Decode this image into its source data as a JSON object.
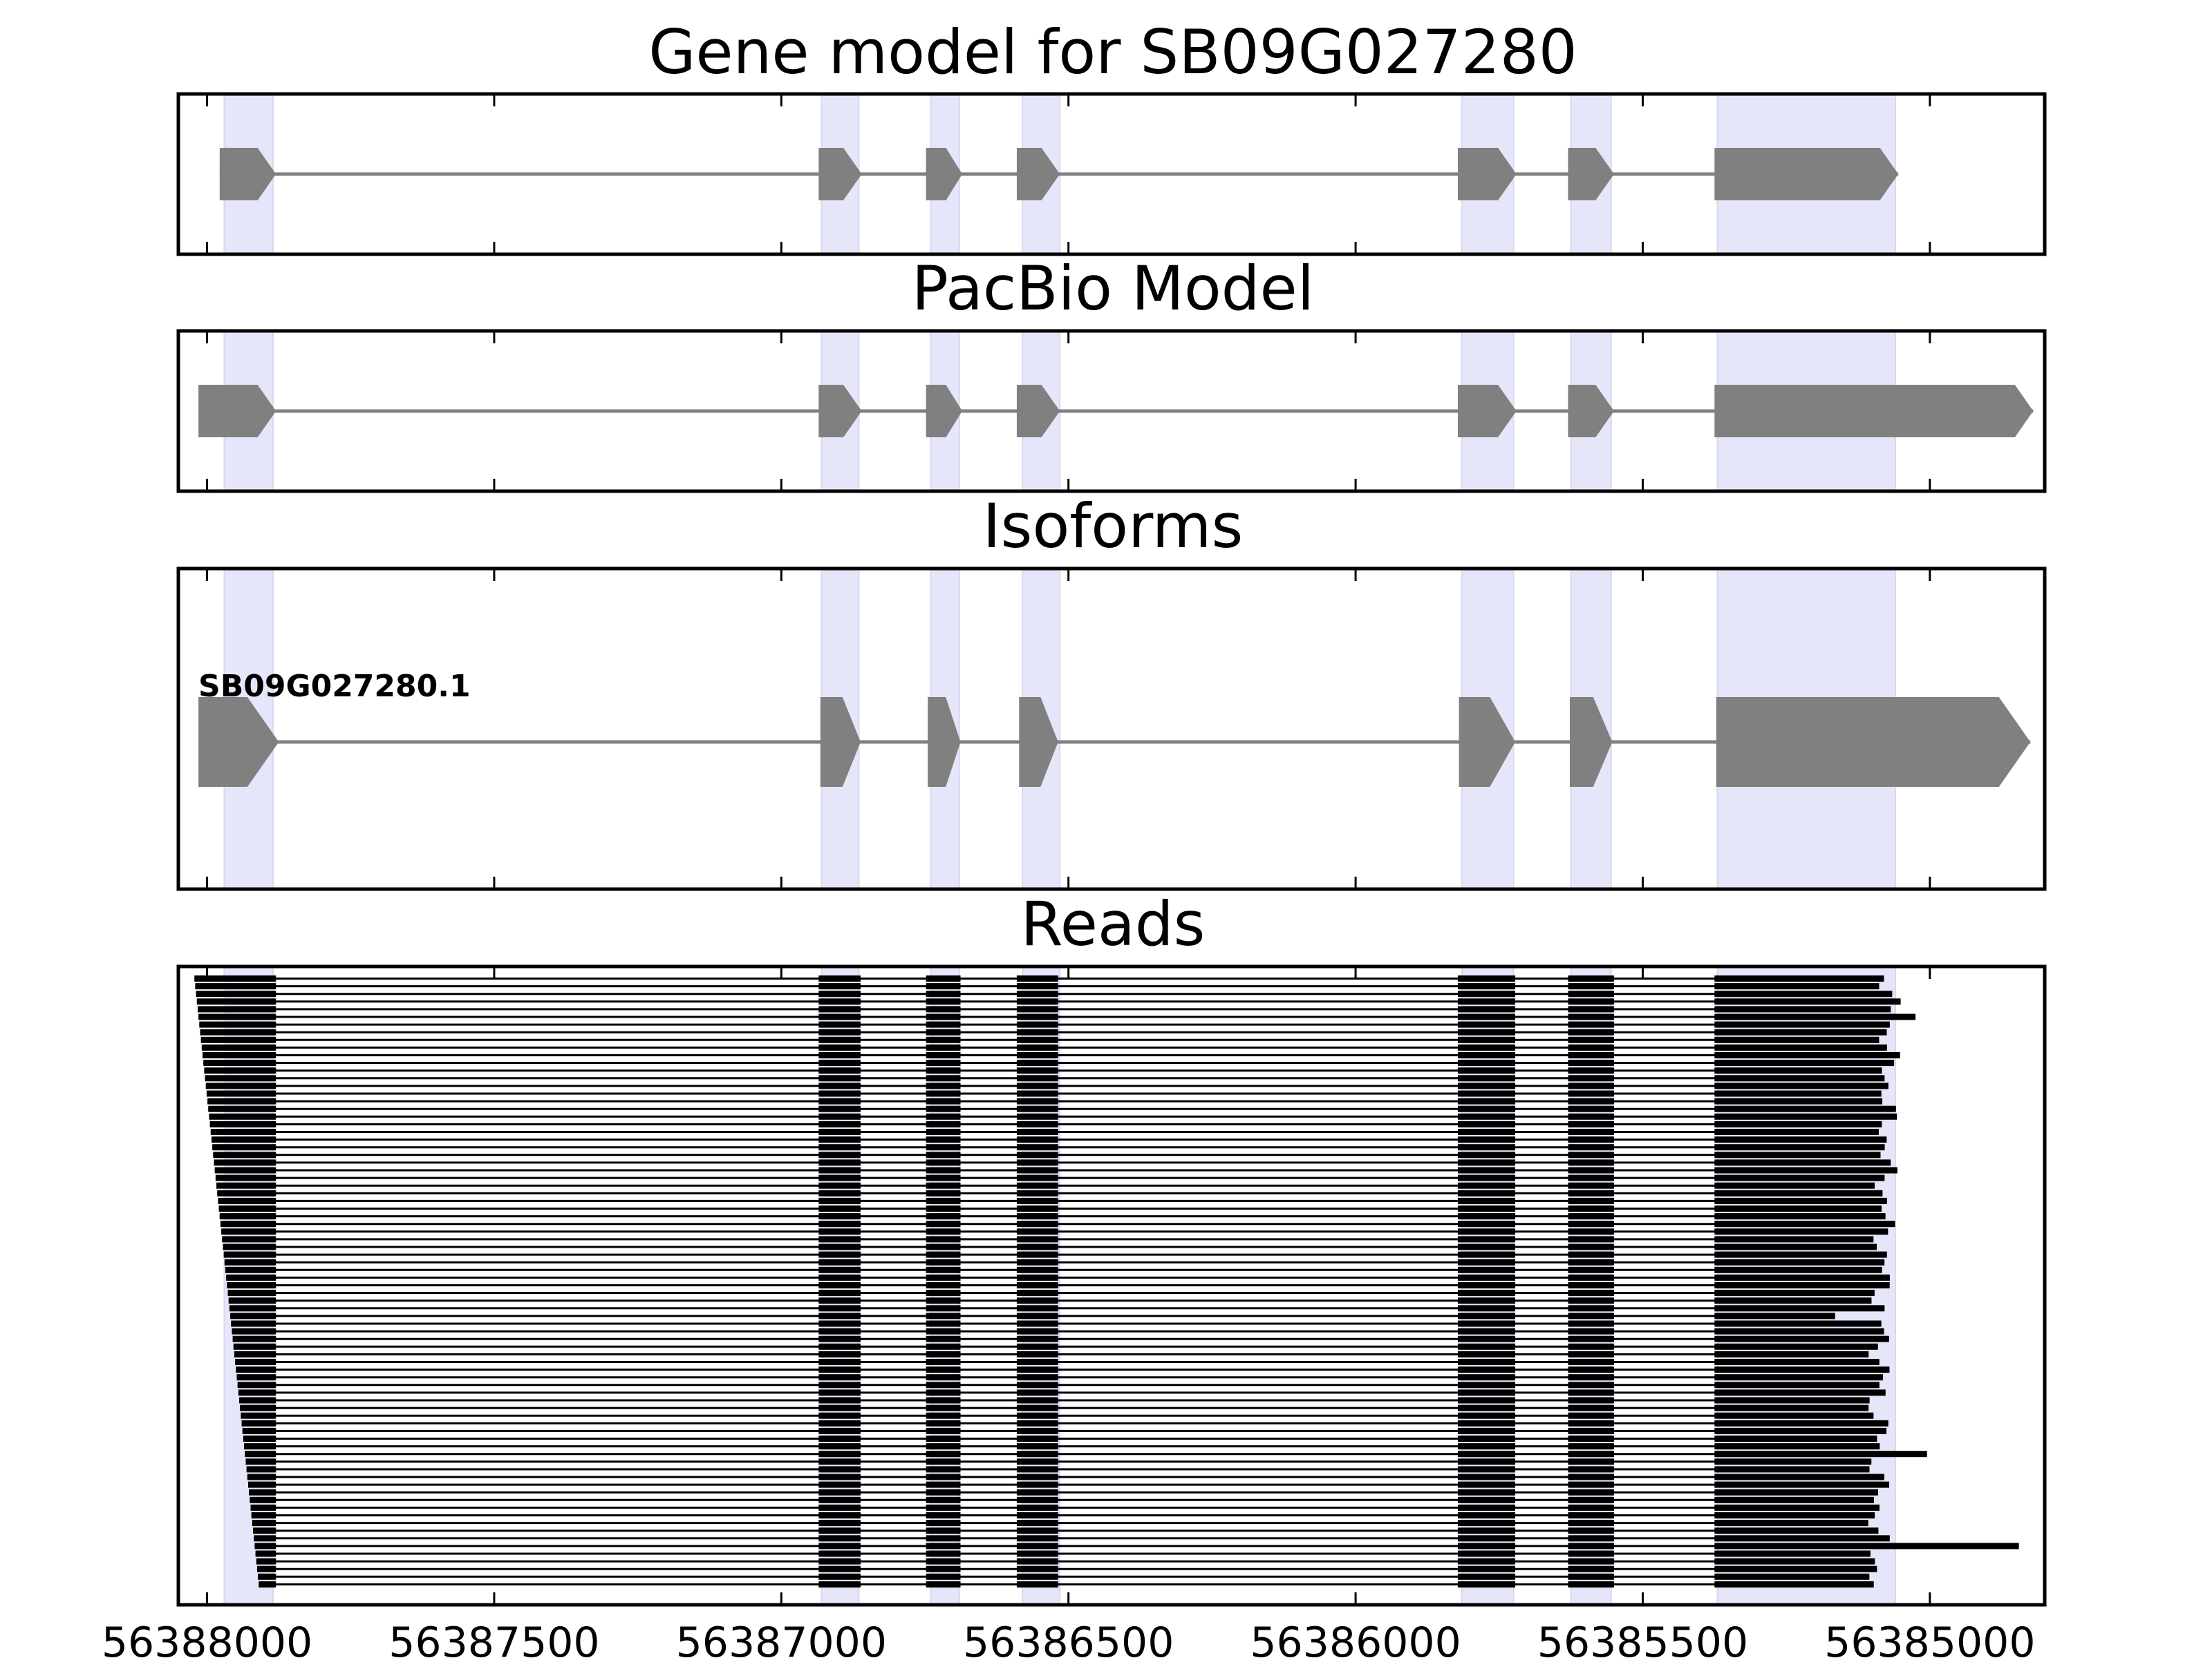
{
  "chart_data": {
    "type": "gene-track",
    "x_axis": {
      "range": [
        56388050,
        56384800
      ],
      "reversed": true,
      "ticks": [
        56388000,
        56387500,
        56387000,
        56386500,
        56386000,
        56385500,
        56385000
      ],
      "tick_labels": [
        "56388000",
        "56387500",
        "56387000",
        "56386500",
        "56386000",
        "56385500",
        "56385000"
      ]
    },
    "colors": {
      "feature": "#808080",
      "highlight": "#e6e6fa",
      "read": "#000000",
      "frame": "#000000"
    },
    "highlight_regions": [
      [
        56387970,
        56387885
      ],
      [
        56386930,
        56386865
      ],
      [
        56386740,
        56386690
      ],
      [
        56386580,
        56386515
      ],
      [
        56385815,
        56385725
      ],
      [
        56385625,
        56385555
      ],
      [
        56385370,
        56385060
      ]
    ],
    "panels": [
      {
        "title": "Gene model for SB09G027280",
        "exons": [
          [
            56387978,
            56387880
          ],
          [
            56386935,
            56386860
          ],
          [
            56386748,
            56386685
          ],
          [
            56386590,
            56386515
          ],
          [
            56385822,
            56385720
          ],
          [
            56385630,
            56385550
          ],
          [
            56385375,
            56385055
          ]
        ]
      },
      {
        "title": "PacBio Model",
        "exons": [
          [
            56388015,
            56387880
          ],
          [
            56386935,
            56386860
          ],
          [
            56386748,
            56386685
          ],
          [
            56386590,
            56386515
          ],
          [
            56385822,
            56385720
          ],
          [
            56385630,
            56385550
          ],
          [
            56385375,
            56384820
          ]
        ]
      },
      {
        "title": "Isoforms",
        "isoforms": [
          {
            "label": "SB09G027280.1",
            "exons": [
              [
                56388015,
                56387875
              ],
              [
                56386932,
                56386862
              ],
              [
                56386745,
                56386688
              ],
              [
                56386586,
                56386518
              ],
              [
                56385820,
                56385722
              ],
              [
                56385627,
                56385553
              ],
              [
                56385372,
                56384825
              ]
            ]
          }
        ]
      },
      {
        "title": "Reads",
        "read_count": 80,
        "read_start_range": [
          56388022,
          56387910
        ],
        "read_end_base": 56385050,
        "inner_exons": [
          [
            56386935,
            56386862
          ],
          [
            56386748,
            56386688
          ],
          [
            56386590,
            56386518
          ],
          [
            56385822,
            56385722
          ],
          [
            56385630,
            56385550
          ]
        ],
        "first_exon_end": 56387880,
        "last_exon_start": 56385375,
        "read_end_overrides": [
          {
            "index": 5,
            "end": 56385025
          },
          {
            "index": 44,
            "end": 56385165
          },
          {
            "index": 55,
            "end": 56385105
          },
          {
            "index": 62,
            "end": 56385005
          },
          {
            "index": 74,
            "end": 56384845
          }
        ]
      }
    ]
  }
}
